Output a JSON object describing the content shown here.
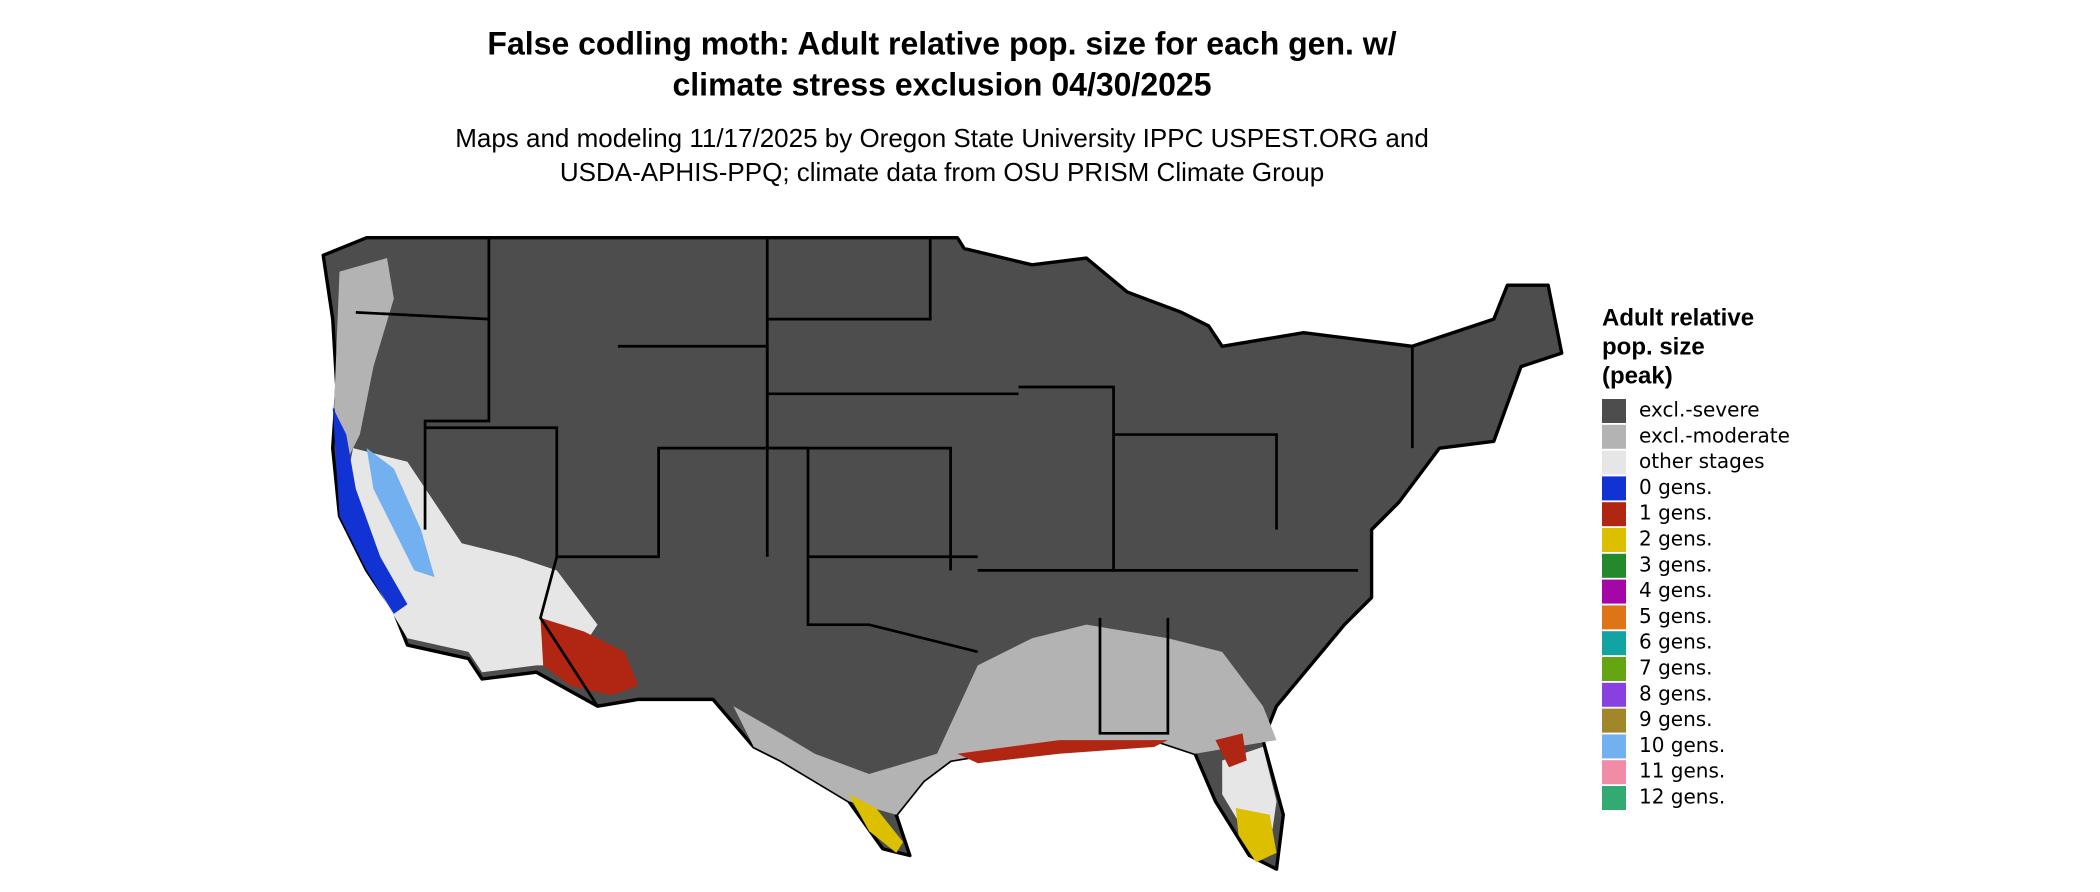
{
  "title_lines": [
    "False codling moth: Adult relative pop. size for each gen. w/",
    "climate stress exclusion 04/30/2025"
  ],
  "subtitle_lines": [
    "Maps and modeling 11/17/2025 by Oregon State University IPPC USPEST.ORG and",
    "USDA-APHIS-PPQ; climate data from OSU PRISM Climate Group"
  ],
  "legend": {
    "title_lines": [
      "Adult relative",
      "pop. size",
      "(peak)"
    ],
    "items": [
      {
        "label": "excl.-severe",
        "color": "#4d4d4d"
      },
      {
        "label": "excl.-moderate",
        "color": "#b3b3b3"
      },
      {
        "label": "other stages",
        "color": "#e6e6e6"
      },
      {
        "label": "0 gens.",
        "color": "#1133d4"
      },
      {
        "label": "1 gens.",
        "color": "#b02612"
      },
      {
        "label": "2 gens.",
        "color": "#dcc000"
      },
      {
        "label": "3 gens.",
        "color": "#23892a"
      },
      {
        "label": "4 gens.",
        "color": "#a406a8"
      },
      {
        "label": "5 gens.",
        "color": "#de7416"
      },
      {
        "label": "6 gens.",
        "color": "#12a3a3"
      },
      {
        "label": "7 gens.",
        "color": "#64a512"
      },
      {
        "label": "8 gens.",
        "color": "#8840e0"
      },
      {
        "label": "9 gens.",
        "color": "#a2862a"
      },
      {
        "label": "10 gens.",
        "color": "#72b0f0"
      },
      {
        "label": "11 gens.",
        "color": "#f08ca6"
      },
      {
        "label": "12 gens.",
        "color": "#32aa72"
      }
    ]
  }
}
